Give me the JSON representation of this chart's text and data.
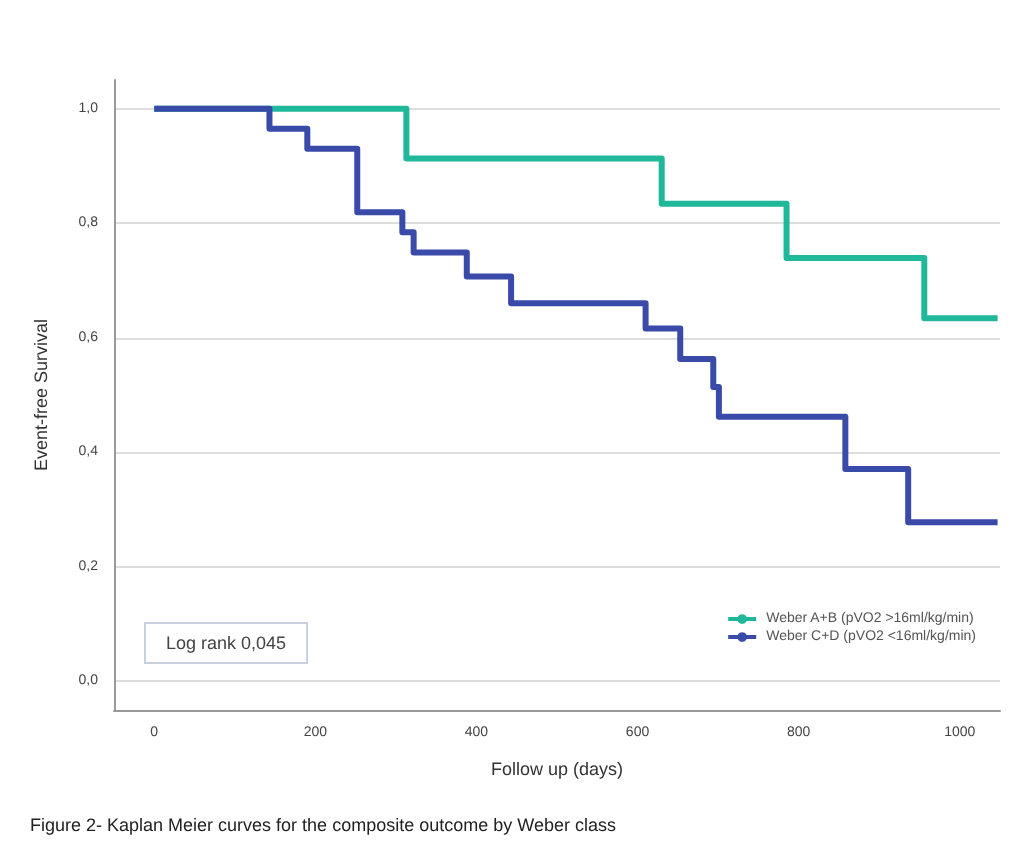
{
  "chart_data": {
    "type": "step",
    "title": "Figure 2- Kaplan Meier curves for the composite outcome by Weber class",
    "xlabel": "Follow up (days)",
    "ylabel": "Event-free Survival",
    "series": [
      {
        "name": "Weber A+B (pVO2 >16ml/kg/min)",
        "color": "#20b89a",
        "x": [
          0,
          313,
          630,
          785,
          956,
          1047
        ],
        "values": [
          1.0,
          0.913,
          0.834,
          0.739,
          0.634,
          0.634
        ]
      },
      {
        "name": "Weber C+D (pVO2 <16ml/kg/min)",
        "color": "#3a4aa8",
        "x": [
          0,
          143,
          190,
          252,
          308,
          322,
          388,
          443,
          610,
          653,
          694,
          701,
          858,
          936,
          1047
        ],
        "values": [
          1.0,
          0.965,
          0.93,
          0.819,
          0.784,
          0.749,
          0.707,
          0.66,
          0.616,
          0.563,
          0.514,
          0.462,
          0.371,
          0.278,
          0.278
        ]
      }
    ],
    "xlim": [
      -50,
      1050
    ],
    "xticks": [
      0,
      200,
      400,
      600,
      800,
      1000
    ],
    "ylim": [
      -0.05,
      1.05
    ],
    "yticks": [
      {
        "value": 0,
        "label": "0,0"
      },
      {
        "value": 0.2,
        "label": "0,2"
      },
      {
        "value": 0.4,
        "label": "0,4"
      },
      {
        "value": 0.6,
        "label": "0,6"
      },
      {
        "value": 0.8,
        "label": "0,8"
      },
      {
        "value": 1,
        "label": "1,0"
      }
    ],
    "annotations": [
      "Log rank 0,045"
    ],
    "grid": "y",
    "legend": "bottom right",
    "line_style": "solid",
    "marker": "none"
  }
}
